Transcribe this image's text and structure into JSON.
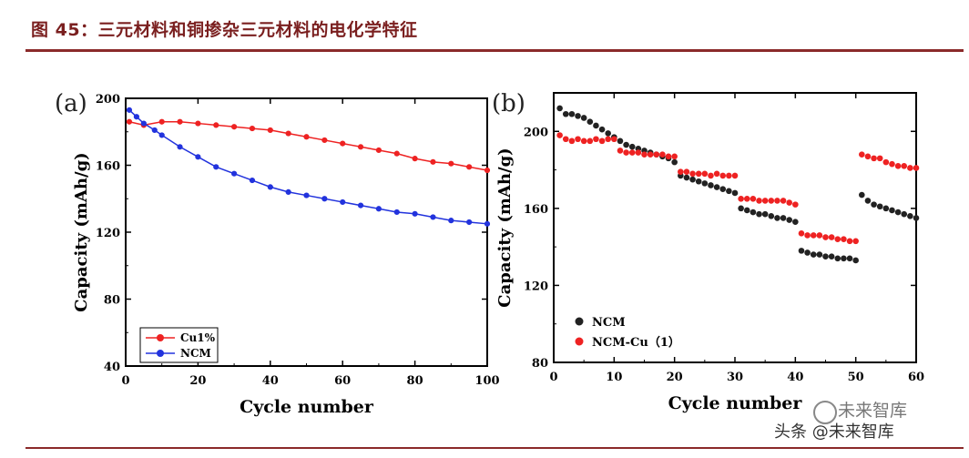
{
  "figure": {
    "title": "图 45：三元材料和铜掺杂三元材料的电化学特征",
    "watermark": "头条 @未来智库",
    "logo_text": "未来智库"
  },
  "colors": {
    "title": "#7a1f1f",
    "rule": "#8b2a2a",
    "red": "#ee2222",
    "blue": "#2233dd",
    "black": "#222222"
  },
  "chart_data": [
    {
      "panel_label": "(a)",
      "type": "line",
      "xlabel": "Cycle number",
      "ylabel": "Capacity (mAh/g)",
      "xlim": [
        0,
        100
      ],
      "ylim": [
        40,
        200
      ],
      "xticks": [
        0,
        20,
        40,
        60,
        80,
        100
      ],
      "yticks": [
        40,
        80,
        120,
        160,
        200
      ],
      "legend_position": "bottom-left",
      "series": [
        {
          "name": "Cu1%",
          "color": "#ee2222",
          "x": [
            1,
            5,
            10,
            15,
            20,
            25,
            30,
            35,
            40,
            45,
            50,
            55,
            60,
            65,
            70,
            75,
            80,
            85,
            90,
            95,
            100
          ],
          "y": [
            186,
            184,
            186,
            186,
            185,
            184,
            183,
            182,
            181,
            179,
            177,
            175,
            173,
            171,
            169,
            167,
            164,
            162,
            161,
            159,
            157
          ]
        },
        {
          "name": "NCM",
          "color": "#2233dd",
          "x": [
            1,
            3,
            5,
            8,
            10,
            15,
            20,
            25,
            30,
            35,
            40,
            45,
            50,
            55,
            60,
            65,
            70,
            75,
            80,
            85,
            90,
            95,
            100
          ],
          "y": [
            193,
            189,
            185,
            181,
            178,
            171,
            165,
            159,
            155,
            151,
            147,
            144,
            142,
            140,
            138,
            136,
            134,
            132,
            131,
            129,
            127,
            126,
            125
          ]
        }
      ]
    },
    {
      "panel_label": "(b)",
      "type": "scatter",
      "xlabel": "Cycle number",
      "ylabel": "Capacity (mAh/g)",
      "xlim": [
        0,
        60
      ],
      "ylim": [
        80,
        220
      ],
      "xticks": [
        0,
        10,
        20,
        30,
        40,
        50,
        60
      ],
      "yticks": [
        80,
        120,
        160,
        200
      ],
      "legend_position": "bottom-left",
      "series": [
        {
          "name": "NCM",
          "color": "#222222",
          "x": [
            1,
            2,
            3,
            4,
            5,
            6,
            7,
            8,
            9,
            10,
            11,
            12,
            13,
            14,
            15,
            16,
            17,
            18,
            19,
            20,
            21,
            22,
            23,
            24,
            25,
            26,
            27,
            28,
            29,
            30,
            31,
            32,
            33,
            34,
            35,
            36,
            37,
            38,
            39,
            40,
            41,
            42,
            43,
            44,
            45,
            46,
            47,
            48,
            49,
            50,
            51,
            52,
            53,
            54,
            55,
            56,
            57,
            58,
            59,
            60
          ],
          "y": [
            212,
            209,
            209,
            208,
            207,
            205,
            203,
            201,
            199,
            197,
            195,
            193,
            192,
            191,
            190,
            189,
            188,
            187,
            186,
            184,
            177,
            176,
            175,
            174,
            173,
            172,
            171,
            170,
            169,
            168,
            160,
            159,
            158,
            157,
            157,
            156,
            155,
            155,
            154,
            153,
            138,
            137,
            136,
            136,
            135,
            135,
            134,
            134,
            134,
            133,
            167,
            164,
            162,
            161,
            160,
            159,
            158,
            157,
            156,
            155
          ]
        },
        {
          "name": "NCM-Cu（1）",
          "color": "#ee2222",
          "x": [
            1,
            2,
            3,
            4,
            5,
            6,
            7,
            8,
            9,
            10,
            11,
            12,
            13,
            14,
            15,
            16,
            17,
            18,
            19,
            20,
            21,
            22,
            23,
            24,
            25,
            26,
            27,
            28,
            29,
            30,
            31,
            32,
            33,
            34,
            35,
            36,
            37,
            38,
            39,
            40,
            41,
            42,
            43,
            44,
            45,
            46,
            47,
            48,
            49,
            50,
            51,
            52,
            53,
            54,
            55,
            56,
            57,
            58,
            59,
            60
          ],
          "y": [
            198,
            196,
            195,
            196,
            195,
            195,
            196,
            195,
            196,
            196,
            190,
            189,
            189,
            189,
            188,
            188,
            188,
            188,
            187,
            187,
            179,
            179,
            178,
            178,
            178,
            177,
            178,
            177,
            177,
            177,
            165,
            165,
            165,
            164,
            164,
            164,
            164,
            164,
            163,
            162,
            147,
            146,
            146,
            146,
            145,
            145,
            144,
            144,
            143,
            143,
            188,
            187,
            186,
            186,
            184,
            183,
            182,
            182,
            181,
            181
          ]
        }
      ]
    }
  ]
}
